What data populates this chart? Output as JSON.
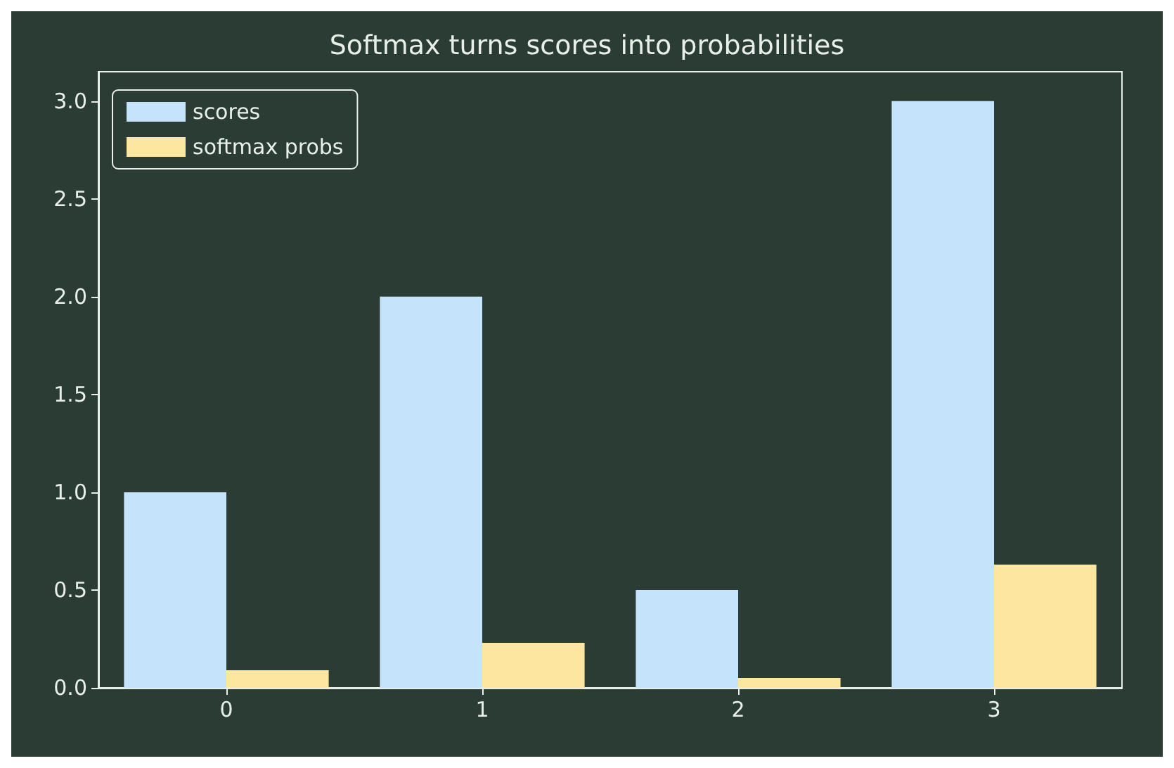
{
  "chart_data": {
    "type": "bar",
    "title": "Softmax turns scores into probabilities",
    "categories": [
      "0",
      "1",
      "2",
      "3"
    ],
    "series": [
      {
        "name": "scores",
        "color": "#c5e3fb",
        "values": [
          1.0,
          2.0,
          0.5,
          3.0
        ]
      },
      {
        "name": "softmax probs",
        "color": "#fde7a0",
        "values": [
          0.09,
          0.23,
          0.05,
          0.63
        ]
      }
    ],
    "ylim": [
      0,
      3.15
    ],
    "yticks": [
      {
        "value": 0,
        "label": "0.0"
      },
      {
        "value": 0.5,
        "label": "0.5"
      },
      {
        "value": 1,
        "label": "1.0"
      },
      {
        "value": 1.5,
        "label": "1.5"
      },
      {
        "value": 2,
        "label": "2.0"
      },
      {
        "value": 2.5,
        "label": "2.5"
      },
      {
        "value": 3,
        "label": "3.0"
      }
    ],
    "grid": false,
    "legend": "top left"
  }
}
